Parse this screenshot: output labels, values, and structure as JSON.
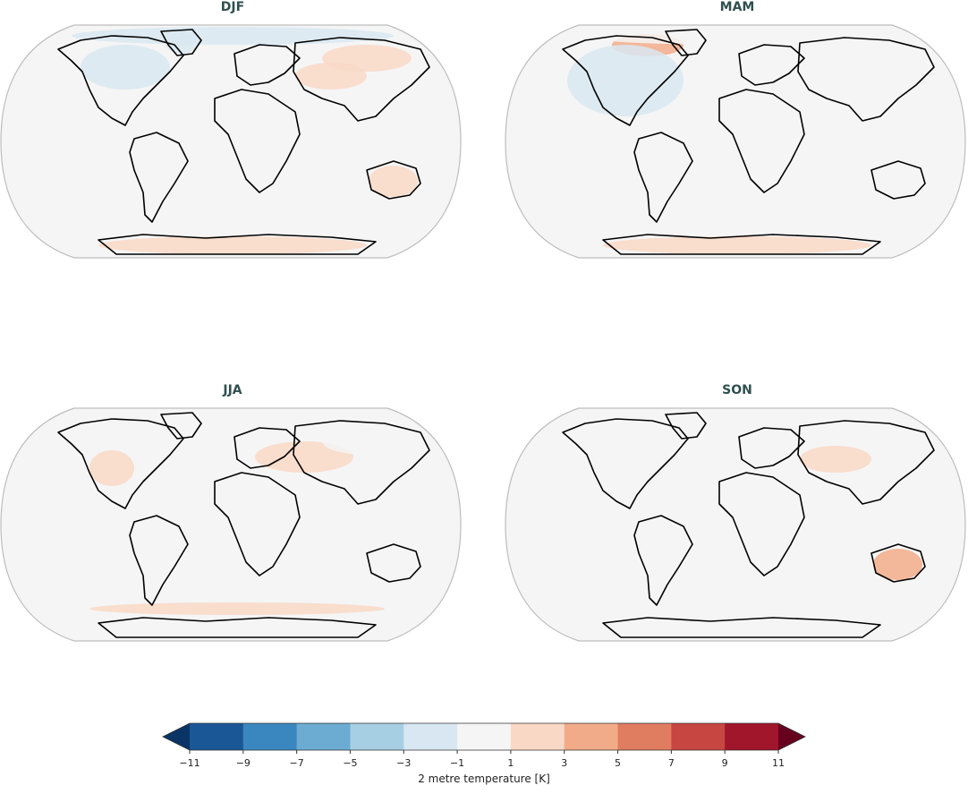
{
  "chart_data": {
    "type": "heatmap",
    "projection": "Robinson (global)",
    "panels": [
      {
        "title": "DJF",
        "anomaly_regions": [
          {
            "region": "Arctic",
            "level": -3
          },
          {
            "region": "Canada",
            "level": -3
          },
          {
            "region": "Greenland",
            "level": -3
          },
          {
            "region": "Siberia",
            "level": 1
          },
          {
            "region": "Central Asia",
            "level": 1
          },
          {
            "region": "Africa",
            "level": -1
          },
          {
            "region": "Australia",
            "level": 1
          },
          {
            "region": "Antarctica",
            "level": 1
          }
        ]
      },
      {
        "title": "MAM",
        "anomaly_regions": [
          {
            "region": "Canadian Arctic",
            "level": 3
          },
          {
            "region": "North America",
            "level": -3
          },
          {
            "region": "Eurasia",
            "level": -1
          },
          {
            "region": "Arctic",
            "level": -1
          },
          {
            "region": "Antarctica",
            "level": 1
          }
        ]
      },
      {
        "title": "JJA",
        "anomaly_regions": [
          {
            "region": "Central North America",
            "level": 1
          },
          {
            "region": "Eastern Europe / Central Asia",
            "level": 1
          },
          {
            "region": "Siberia",
            "level": -1
          },
          {
            "region": "Southern Ocean",
            "level": 1
          },
          {
            "region": "Antarctica",
            "level": -1
          }
        ]
      },
      {
        "title": "SON",
        "anomaly_regions": [
          {
            "region": "Arctic",
            "level": -1
          },
          {
            "region": "Central Asia",
            "level": 1
          },
          {
            "region": "Australia",
            "level": 3
          },
          {
            "region": "South America",
            "level": -1
          },
          {
            "region": "Antarctica",
            "level": -1
          }
        ]
      }
    ],
    "colorbar": {
      "label": "2 metre temperature [K]",
      "ticks": [
        "−11",
        "−9",
        "−7",
        "−5",
        "−3",
        "−1",
        "1",
        "3",
        "5",
        "7",
        "9",
        "11"
      ],
      "bounds": [
        -11,
        -9,
        -7,
        -5,
        -3,
        -1,
        1,
        3,
        5,
        7,
        9,
        11
      ],
      "colors": [
        "#1a5796",
        "#3a87bf",
        "#6cacd2",
        "#a7cfe4",
        "#d8e7f1",
        "#f5f5f5",
        "#f9d8c6",
        "#f2ab88",
        "#e07c5f",
        "#c74641",
        "#a1162b"
      ],
      "under_color": "#093466",
      "over_color": "#67001f",
      "extend": "both",
      "orientation": "horizontal",
      "position": "bottom"
    }
  }
}
